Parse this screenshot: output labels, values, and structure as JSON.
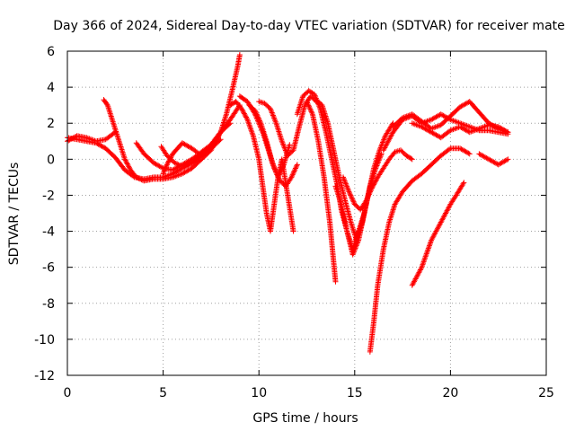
{
  "chart_data": {
    "type": "scatter",
    "title": "Day 366 of 2024, Sidereal Day-to-day VTEC variation (SDTVAR) for receiver mate",
    "xlabel": "GPS time / hours",
    "ylabel": "SDTVAR / TECUs",
    "xlim": [
      0,
      25
    ],
    "ylim": [
      -12,
      6
    ],
    "xticks": [
      0,
      5,
      10,
      15,
      20,
      25
    ],
    "yticks": [
      -12,
      -10,
      -8,
      -6,
      -4,
      -2,
      0,
      2,
      4,
      6
    ],
    "grid": true,
    "legend": "none",
    "marker": "plus",
    "color": "#ff0000",
    "series": [
      {
        "x": [
          0.0,
          0.5,
          1.0,
          1.5,
          2.0,
          2.5,
          3.0,
          3.5,
          4.0,
          4.5,
          5.0,
          5.5,
          6.0,
          6.5,
          7.0,
          7.5,
          8.0,
          8.3,
          8.6,
          8.9,
          9.0
        ],
        "y": [
          1.2,
          1.1,
          1.0,
          0.9,
          0.6,
          0.1,
          -0.6,
          -1.0,
          -1.1,
          -1.0,
          -1.0,
          -0.8,
          -0.5,
          -0.2,
          0.3,
          0.8,
          1.5,
          2.5,
          3.8,
          5.2,
          5.8
        ]
      },
      {
        "x": [
          0.0,
          0.5,
          1.0,
          1.5,
          2.0,
          2.5
        ],
        "y": [
          1.0,
          1.3,
          1.2,
          1.0,
          1.1,
          1.5
        ]
      },
      {
        "x": [
          1.9,
          2.1,
          2.4,
          2.7,
          3.0,
          3.3,
          3.6,
          4.0,
          4.5,
          5.0,
          5.5,
          6.0,
          6.5,
          7.0,
          7.5,
          8.0
        ],
        "y": [
          3.3,
          3.0,
          2.0,
          1.0,
          0.0,
          -0.6,
          -1.0,
          -1.2,
          -1.1,
          -1.1,
          -1.0,
          -0.8,
          -0.5,
          0.0,
          0.5,
          1.5
        ]
      },
      {
        "x": [
          3.6,
          4.0,
          4.5,
          5.0,
          5.5,
          6.0,
          6.5,
          7.0,
          7.5,
          8.0,
          8.5
        ],
        "y": [
          0.9,
          0.3,
          -0.2,
          -0.5,
          -0.6,
          -0.3,
          0.0,
          0.4,
          0.8,
          1.5,
          2.0
        ]
      },
      {
        "x": [
          4.9,
          5.2,
          5.6,
          6.0,
          6.5,
          7.0,
          7.5,
          8.0,
          8.5,
          9.0
        ],
        "y": [
          0.7,
          0.2,
          -0.2,
          -0.4,
          -0.2,
          0.2,
          0.7,
          1.5,
          2.2,
          3.0
        ]
      },
      {
        "x": [
          5.0,
          5.2,
          5.5,
          6.0,
          6.5,
          7.0,
          7.5,
          8.0
        ],
        "y": [
          -0.8,
          -0.3,
          0.3,
          0.9,
          0.6,
          0.2,
          0.6,
          1.1
        ]
      },
      {
        "x": [
          8.5,
          8.8,
          9.1,
          9.4,
          9.7,
          10.0,
          10.2,
          10.4,
          10.6,
          10.8,
          11.0,
          11.2,
          11.5,
          11.8
        ],
        "y": [
          3.0,
          3.2,
          2.8,
          2.2,
          1.3,
          0.0,
          -1.5,
          -3.0,
          -4.0,
          -2.5,
          -1.0,
          0.0,
          -2.0,
          -4.0
        ]
      },
      {
        "x": [
          9.0,
          9.4,
          9.8,
          10.2,
          10.5,
          10.8,
          11.1,
          11.4,
          11.7,
          12.0
        ],
        "y": [
          3.5,
          3.2,
          2.5,
          1.5,
          0.5,
          -0.5,
          -1.2,
          -1.5,
          -1.0,
          -0.3
        ]
      },
      {
        "x": [
          9.5,
          9.8,
          10.1,
          10.4,
          10.7,
          11.0,
          11.3,
          11.6
        ],
        "y": [
          3.0,
          2.7,
          2.0,
          1.0,
          -0.2,
          -1.0,
          -0.3,
          0.8
        ]
      },
      {
        "x": [
          10.0,
          10.3,
          10.6,
          10.9,
          11.2,
          11.5,
          11.8,
          12.1,
          12.4,
          12.7,
          13.0
        ],
        "y": [
          3.2,
          3.1,
          2.8,
          2.0,
          1.0,
          0.2,
          0.5,
          1.8,
          3.0,
          3.5,
          3.2
        ]
      },
      {
        "x": [
          12.0,
          12.3,
          12.6,
          12.9,
          13.2,
          13.5,
          13.8,
          14.1,
          14.3,
          14.6,
          14.9,
          15.2,
          15.5
        ],
        "y": [
          2.5,
          3.5,
          3.8,
          3.6,
          2.8,
          1.5,
          0.0,
          -1.5,
          -2.8,
          -4.0,
          -5.0,
          -4.0,
          -3.0
        ]
      },
      {
        "x": [
          12.5,
          12.8,
          13.1,
          13.4,
          13.7,
          14.0
        ],
        "y": [
          3.2,
          2.5,
          1.0,
          -1.0,
          -3.5,
          -6.8
        ]
      },
      {
        "x": [
          13.0,
          13.3,
          13.6,
          13.9,
          14.2,
          14.5,
          14.8,
          15.1,
          15.4,
          15.7,
          16.0,
          16.3,
          16.6,
          17.0
        ],
        "y": [
          3.3,
          3.0,
          2.0,
          0.5,
          -1.0,
          -2.3,
          -3.5,
          -4.5,
          -3.5,
          -2.0,
          -0.5,
          0.5,
          1.3,
          2.0
        ]
      },
      {
        "x": [
          14.0,
          14.3,
          14.6,
          14.9,
          15.2,
          15.5,
          15.8,
          16.1,
          16.4
        ],
        "y": [
          -1.5,
          -2.5,
          -4.0,
          -5.3,
          -4.5,
          -3.0,
          -1.5,
          -0.5,
          0.3
        ]
      },
      {
        "x": [
          14.4,
          14.7,
          15.0,
          15.3,
          15.6,
          15.9,
          16.2,
          16.5,
          16.8,
          17.1,
          17.4,
          17.7,
          18.0
        ],
        "y": [
          -1.0,
          -1.8,
          -2.5,
          -2.8,
          -2.3,
          -1.6,
          -1.0,
          -0.5,
          0.0,
          0.4,
          0.5,
          0.2,
          0.0
        ]
      },
      {
        "x": [
          15.8,
          16.0,
          16.2,
          16.5,
          16.8,
          17.1,
          17.5,
          18.0,
          18.5,
          19.0,
          19.5,
          20.0,
          20.5,
          21.0
        ],
        "y": [
          -10.7,
          -9.0,
          -7.0,
          -5.0,
          -3.5,
          -2.5,
          -1.8,
          -1.2,
          -0.8,
          -0.3,
          0.2,
          0.6,
          0.6,
          0.3
        ]
      },
      {
        "x": [
          16.5,
          17.0,
          17.5,
          18.0,
          18.5,
          19.0,
          19.5,
          20.0,
          20.5,
          21.0,
          21.5,
          22.0,
          22.5,
          23.0
        ],
        "y": [
          0.5,
          1.5,
          2.2,
          2.4,
          2.0,
          2.2,
          2.5,
          2.2,
          2.0,
          1.8,
          1.6,
          1.6,
          1.5,
          1.4
        ]
      },
      {
        "x": [
          17.0,
          17.5,
          18.0,
          18.5,
          19.0,
          19.5,
          20.0,
          20.5,
          21.0,
          21.5,
          22.0,
          22.5,
          23.0
        ],
        "y": [
          1.8,
          2.3,
          2.5,
          2.1,
          1.7,
          1.9,
          2.4,
          2.9,
          3.2,
          2.6,
          2.0,
          1.7,
          1.5
        ]
      },
      {
        "x": [
          18.0,
          18.5,
          19.0,
          19.5,
          20.0,
          20.5,
          21.0,
          21.5,
          22.0,
          22.5,
          23.0
        ],
        "y": [
          2.0,
          1.8,
          1.5,
          1.2,
          1.6,
          1.8,
          1.5,
          1.7,
          1.9,
          1.8,
          1.5
        ]
      },
      {
        "x": [
          18.0,
          18.5,
          19.0,
          19.5,
          20.0,
          20.3,
          20.7
        ],
        "y": [
          -7.0,
          -6.0,
          -4.5,
          -3.5,
          -2.5,
          -2.0,
          -1.3
        ]
      },
      {
        "x": [
          21.5,
          22.0,
          22.5,
          23.0
        ],
        "y": [
          0.3,
          0.0,
          -0.3,
          0.0
        ]
      }
    ]
  }
}
